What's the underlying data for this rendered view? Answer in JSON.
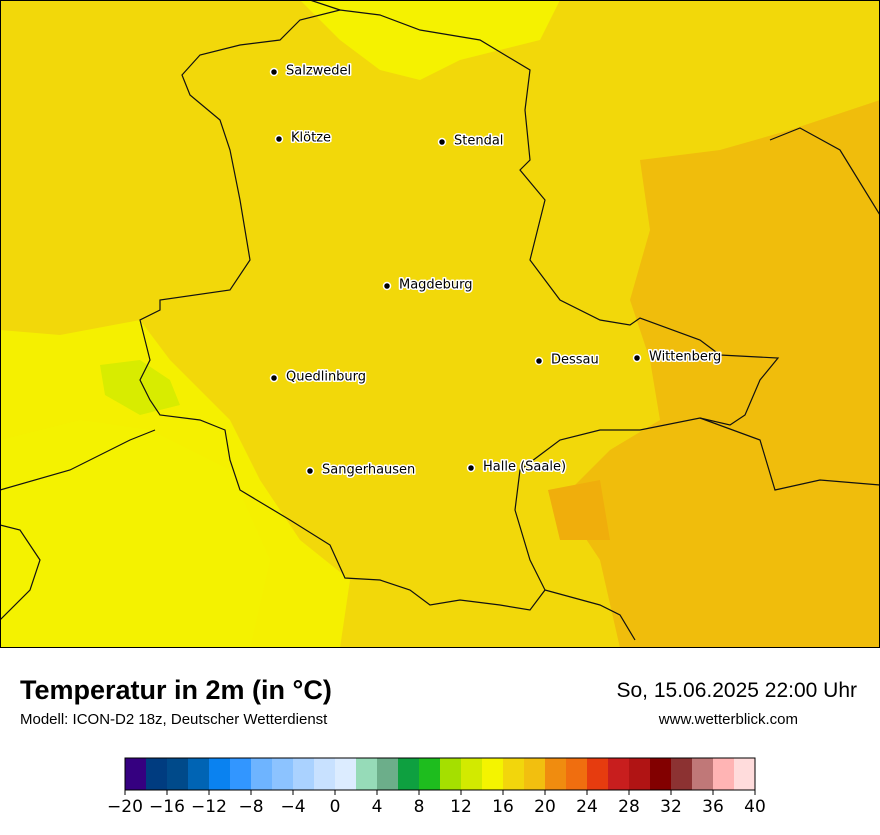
{
  "map": {
    "cities": [
      "Salzwedel",
      "Klötze",
      "Stendal",
      "Magdeburg",
      "Quedlinburg",
      "Dessau",
      "Wittenberg",
      "Sangerhausen",
      "Halle (Saale)"
    ]
  },
  "footer": {
    "title": "Temperatur in 2m (in °C)",
    "subtitle": "Modell: ICON-D2 18z, Deutscher Wetterdienst",
    "date": "So, 15.06.2025 22:00 Uhr",
    "website": "www.wetterblick.com"
  },
  "colorbar": {
    "lim": [
      -20,
      40
    ],
    "colors": [
      "#350080",
      "#003c80",
      "#004a8a",
      "#0064b4",
      "#0a82f0",
      "#3296ff",
      "#6eb4ff",
      "#8cc3ff",
      "#aad2ff",
      "#c8e1ff",
      "#dcecff",
      "#96dbb8",
      "#6cae8a",
      "#0ea040",
      "#1ebd1e",
      "#a5df00",
      "#d2ea00",
      "#f4f400",
      "#f2d60c",
      "#f2bf0f",
      "#f08c0f",
      "#f06e0f",
      "#e63c0f",
      "#c81e1e",
      "#b01414",
      "#820000",
      "#8c3232",
      "#c07878",
      "#ffb4b4",
      "#ffdcdc"
    ],
    "ticks": [
      {
        "value": -20,
        "label": "−20"
      },
      {
        "value": -16,
        "label": "−16"
      },
      {
        "value": -12,
        "label": "−12"
      },
      {
        "value": -8,
        "label": "−8"
      },
      {
        "value": -4,
        "label": "−4"
      },
      0,
      4,
      8,
      12,
      16,
      20,
      24,
      28,
      32,
      36,
      40
    ]
  }
}
